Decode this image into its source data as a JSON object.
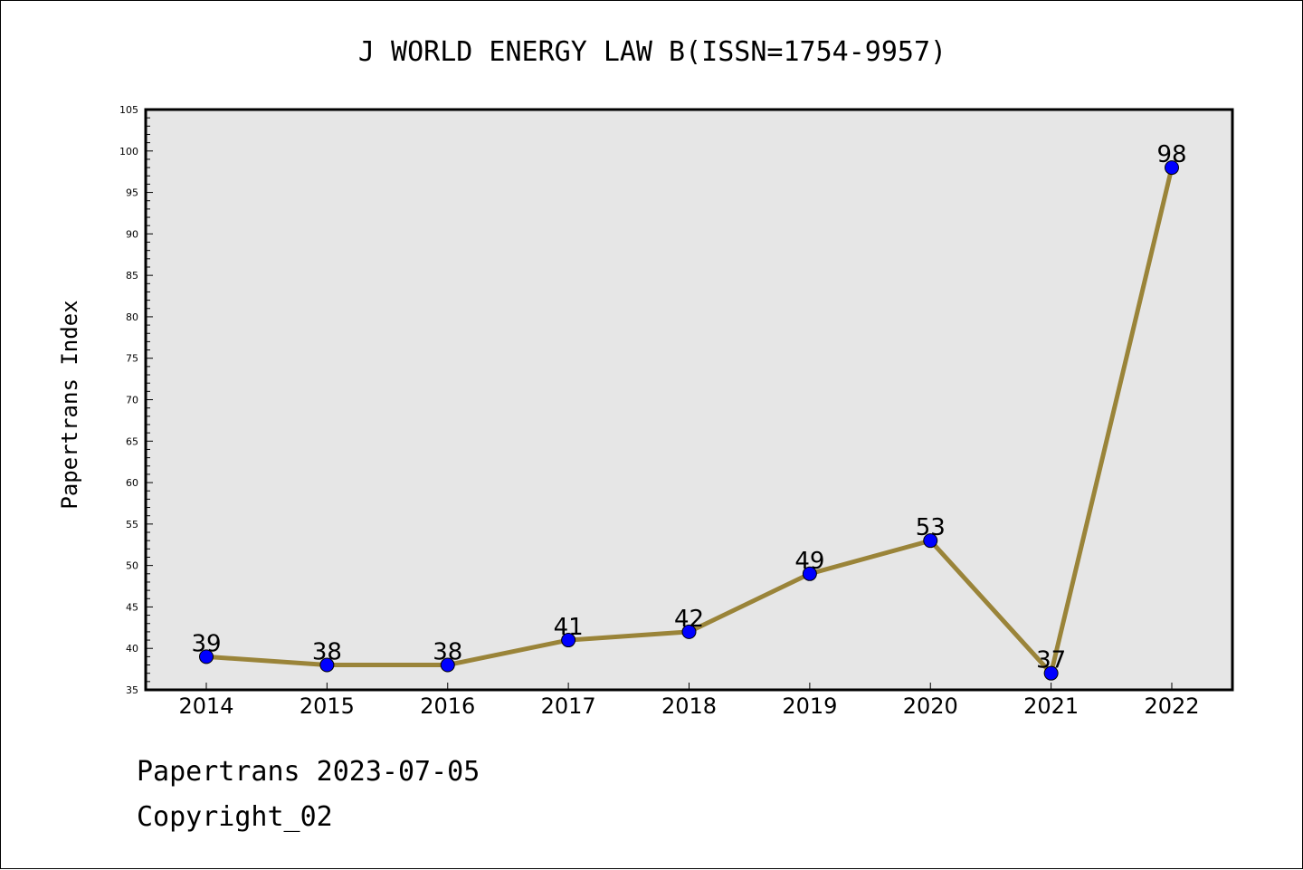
{
  "chart_data": {
    "type": "line",
    "title": "J WORLD ENERGY LAW B(ISSN=1754-9957)",
    "xlabel": "",
    "ylabel": "Papertrans Index",
    "categories": [
      "2014",
      "2015",
      "2016",
      "2017",
      "2018",
      "2019",
      "2020",
      "2021",
      "2022"
    ],
    "series": [
      {
        "values": [
          39,
          38,
          38,
          41,
          42,
          49,
          53,
          37,
          98
        ]
      }
    ],
    "ylim": [
      35,
      105
    ],
    "yticks": [
      35,
      40,
      45,
      50,
      55,
      60,
      65,
      70,
      75,
      80,
      85,
      90,
      95,
      100,
      105
    ],
    "grid": false,
    "data_labels": true,
    "colors": {
      "line": "#9a8439",
      "marker": "#0000ff",
      "plot_background": "#e6e6e6",
      "axes": "#000000"
    }
  },
  "footer": {
    "line1": "Papertrans 2023-07-05",
    "line2": "Copyright_02"
  }
}
